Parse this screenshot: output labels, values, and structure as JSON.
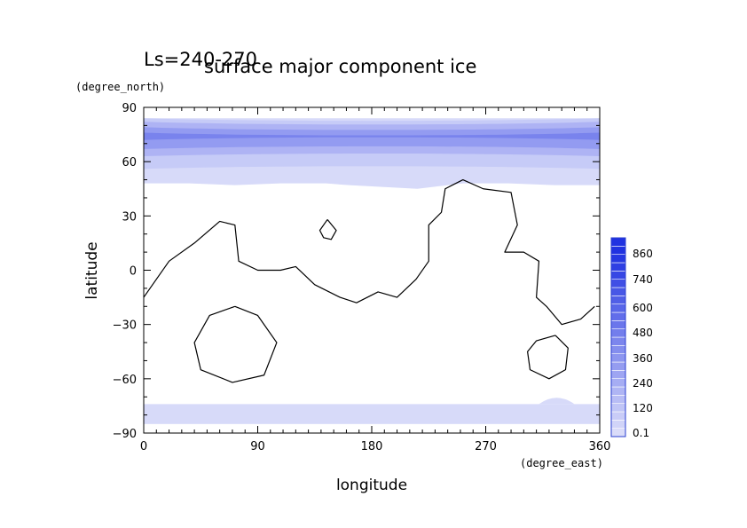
{
  "chart_data": {
    "type": "contour",
    "title": "surface major component ice",
    "subtitle": "Ls=240-270",
    "xlabel": "longitude",
    "ylabel": "latitude",
    "xunit": "(degree_east)",
    "yunit": "(degree_north)",
    "xlim": [
      0,
      360
    ],
    "ylim": [
      -90,
      90
    ],
    "xticks": [
      "0",
      "90",
      "180",
      "270",
      "360"
    ],
    "yticks": [
      "90",
      "60",
      "30",
      "0",
      "−30",
      "−60",
      "−90"
    ],
    "colorbar_ticks": [
      "860",
      "740",
      "600",
      "480",
      "360",
      "240",
      "120",
      "0.1"
    ],
    "levels": [
      0.1,
      120,
      240,
      360,
      480,
      600,
      740,
      860
    ],
    "north_cap": {
      "edge_lat": [
        48,
        48,
        47,
        48,
        48,
        47,
        45,
        48,
        48,
        47,
        47
      ],
      "lon": [
        0,
        36,
        72,
        108,
        144,
        162,
        216,
        252,
        288,
        324,
        360
      ],
      "bands": [
        {
          "level": 120,
          "lat_lo": 56,
          "lat_hi": 84
        },
        {
          "level": 240,
          "lat_lo": 63,
          "lat_hi": 82
        },
        {
          "level": 360,
          "lat_lo": 67,
          "lat_hi": 79
        },
        {
          "level": 480,
          "lat_lo": 72,
          "lat_hi": 76
        }
      ]
    },
    "south_cap": {
      "edge_lat": -74,
      "bump": {
        "lon": [
          312,
          340
        ],
        "lat": -70
      }
    },
    "topography_contours": [
      {
        "name": "continent",
        "points": [
          [
            0,
            -15
          ],
          [
            20,
            5
          ],
          [
            40,
            15
          ],
          [
            60,
            27
          ],
          [
            72,
            25
          ],
          [
            75,
            5
          ],
          [
            90,
            0
          ],
          [
            108,
            0
          ],
          [
            120,
            2
          ],
          [
            135,
            -8
          ],
          [
            155,
            -15
          ],
          [
            168,
            -18
          ],
          [
            185,
            -12
          ],
          [
            200,
            -15
          ],
          [
            215,
            -5
          ],
          [
            225,
            5
          ],
          [
            225,
            25
          ],
          [
            235,
            32
          ],
          [
            238,
            45
          ],
          [
            252,
            50
          ],
          [
            268,
            45
          ],
          [
            290,
            43
          ],
          [
            295,
            25
          ],
          [
            285,
            10
          ],
          [
            300,
            10
          ],
          [
            312,
            5
          ],
          [
            310,
            -15
          ],
          [
            318,
            -20
          ],
          [
            330,
            -30
          ],
          [
            345,
            -27
          ],
          [
            356,
            -20
          ]
        ]
      },
      {
        "name": "hellas",
        "points": [
          [
            72,
            -20
          ],
          [
            90,
            -25
          ],
          [
            105,
            -40
          ],
          [
            95,
            -58
          ],
          [
            70,
            -62
          ],
          [
            45,
            -55
          ],
          [
            40,
            -40
          ],
          [
            52,
            -25
          ],
          [
            72,
            -20
          ]
        ]
      },
      {
        "name": "argyre",
        "points": [
          [
            325,
            -36
          ],
          [
            335,
            -43
          ],
          [
            333,
            -55
          ],
          [
            320,
            -60
          ],
          [
            305,
            -55
          ],
          [
            303,
            -45
          ],
          [
            310,
            -39
          ],
          [
            325,
            -36
          ]
        ]
      },
      {
        "name": "olympus",
        "points": [
          [
            145,
            28
          ],
          [
            152,
            22
          ],
          [
            148,
            17
          ],
          [
            142,
            18
          ],
          [
            139,
            22
          ],
          [
            145,
            28
          ]
        ]
      }
    ]
  }
}
